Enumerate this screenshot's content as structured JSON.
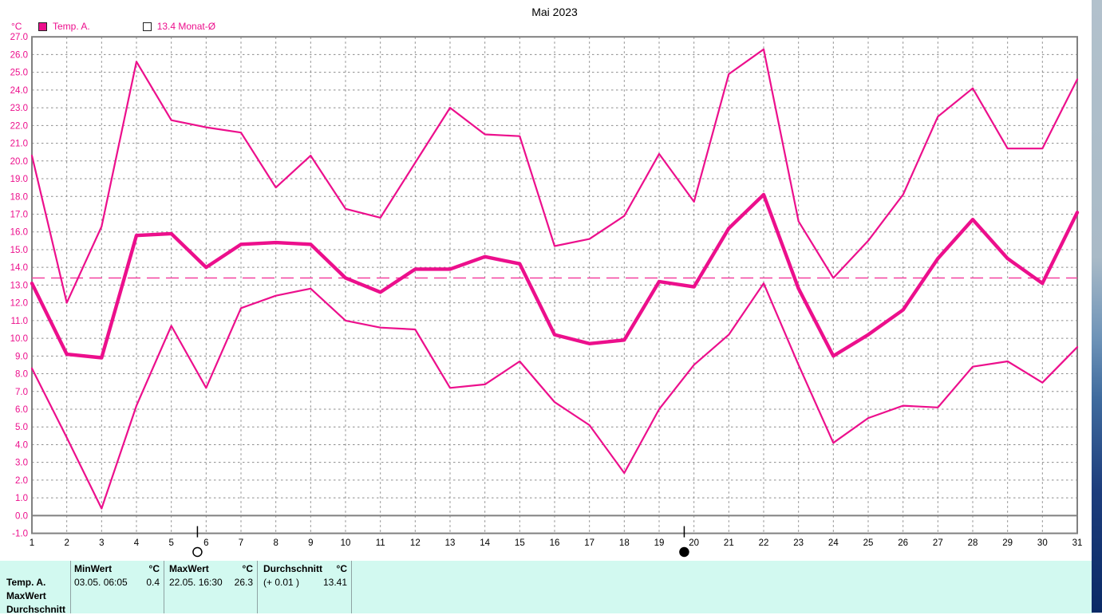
{
  "title": "Mai 2023",
  "y_axis": {
    "unit": "°C"
  },
  "legend": {
    "series_label": "Temp. A.",
    "month_avg_label": "13.4 Monat-Ø"
  },
  "colors": {
    "line": "#ec0f8c",
    "month_avg_dash": "#f4419f",
    "axis": "#808080",
    "grid": "#8c8c8c",
    "tick_label": "#ec0f8c",
    "day_label": "#000000",
    "table_bg": "#d2f9f0"
  },
  "chart_data": {
    "type": "line",
    "x_label_days": [
      1,
      2,
      3,
      4,
      5,
      6,
      7,
      8,
      9,
      10,
      11,
      12,
      13,
      14,
      15,
      16,
      17,
      18,
      19,
      20,
      21,
      22,
      23,
      24,
      25,
      26,
      27,
      28,
      29,
      30,
      31
    ],
    "ylim": [
      -1,
      27
    ],
    "y_tick_step": 1.0,
    "grid": true,
    "legend_position": "top-left",
    "month_average": 13.4,
    "series": {
      "min": [
        8.3,
        4.4,
        0.4,
        6.2,
        10.7,
        7.2,
        11.7,
        12.4,
        12.8,
        11.0,
        10.6,
        10.5,
        7.2,
        7.4,
        8.7,
        6.4,
        5.1,
        2.4,
        6.0,
        8.5,
        10.2,
        13.1,
        8.5,
        4.1,
        5.5,
        6.2,
        6.1,
        8.4,
        8.7,
        7.5,
        9.5
      ],
      "avg": [
        13.1,
        9.1,
        8.9,
        15.8,
        15.9,
        14.0,
        15.3,
        15.4,
        15.3,
        13.4,
        12.6,
        13.9,
        13.9,
        14.6,
        14.2,
        10.2,
        9.7,
        9.9,
        13.2,
        12.9,
        16.2,
        18.1,
        12.8,
        9.0,
        10.2,
        11.6,
        14.5,
        16.7,
        14.5,
        13.1,
        17.1
      ],
      "max": [
        20.3,
        12.0,
        16.3,
        25.6,
        22.3,
        21.9,
        21.6,
        18.5,
        20.3,
        17.3,
        16.8,
        19.9,
        23.0,
        21.5,
        21.4,
        15.2,
        15.6,
        16.9,
        20.4,
        17.7,
        24.9,
        26.3,
        16.6,
        13.4,
        15.5,
        18.1,
        22.5,
        24.1,
        20.7,
        20.7,
        24.6
      ]
    },
    "moon_markers": [
      {
        "day": 5.75,
        "phase": "full-moon",
        "glyph": "○"
      },
      {
        "day": 19.72,
        "phase": "new-moon",
        "glyph": "●"
      }
    ]
  },
  "table": {
    "row_labels": [
      "Temp. A.",
      "MaxWert",
      "Durchschnitt"
    ],
    "columns": [
      {
        "header": "MinWert",
        "unit": "°C",
        "value": "03.05.  06:05",
        "number": "0.4"
      },
      {
        "header": "MaxWert",
        "unit": "°C",
        "value": "22.05.  16:30",
        "number": "26.3"
      },
      {
        "header": "Durchschnitt",
        "unit": "°C",
        "value": "(+ 0.01 )",
        "number": "13.41"
      }
    ]
  }
}
